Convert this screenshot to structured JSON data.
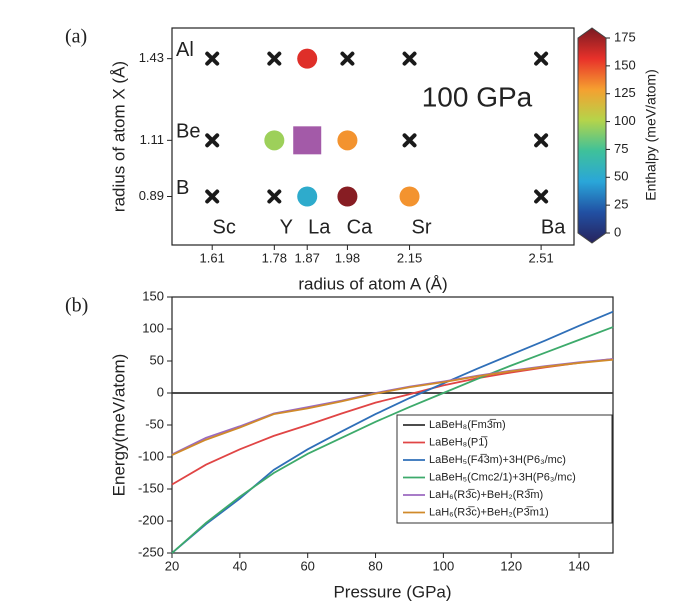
{
  "chart_data": [
    {
      "type": "scatter",
      "panel_label": "(a)",
      "annotation": "100 GPa",
      "xlabel": "radius of atom A (Å)",
      "ylabel": "radius of atom X (Å)",
      "xlim": [
        1.5,
        2.6
      ],
      "ylim": [
        0.7,
        1.55
      ],
      "xticks": [
        1.61,
        1.78,
        1.87,
        1.98,
        2.15,
        2.51
      ],
      "yticks": [
        0.89,
        1.11,
        1.43
      ],
      "x_names": [
        "Sc",
        "Y",
        "La",
        "Ca",
        "Sr",
        "Ba"
      ],
      "y_names": [
        "B",
        "Be",
        "Al"
      ],
      "series": [
        {
          "marker": "cross",
          "color": "#1a1a1a",
          "x": [
            1.61,
            1.78,
            1.98,
            2.15,
            2.51,
            1.61,
            2.15,
            2.51,
            1.61,
            1.78,
            2.51
          ],
          "y": [
            1.43,
            1.43,
            1.43,
            1.43,
            1.43,
            1.11,
            1.11,
            1.11,
            0.89,
            0.89,
            0.89
          ]
        },
        {
          "marker": "circle",
          "x": [
            1.87,
            1.78,
            1.98,
            1.87,
            1.98,
            2.15
          ],
          "y": [
            1.43,
            1.11,
            1.11,
            0.89,
            0.89,
            0.89
          ],
          "values": [
            152,
            95,
            128,
            55,
            172,
            128
          ]
        },
        {
          "marker": "square",
          "color": "#a35aa8",
          "x": [
            1.87
          ],
          "y": [
            1.11
          ]
        }
      ],
      "colorbar": {
        "label": "Enthalpy (meV/atom)",
        "lim": [
          0,
          175
        ],
        "ticks": [
          0,
          25,
          50,
          75,
          100,
          125,
          150,
          175
        ],
        "colors": [
          "#27235c",
          "#2150a3",
          "#2aa6d9",
          "#3fc19a",
          "#b5d44a",
          "#f5a030",
          "#e8312a",
          "#7a1a22"
        ]
      }
    },
    {
      "type": "line",
      "panel_label": "(b)",
      "xlabel": "Pressure (GPa)",
      "ylabel": "Energy(meV/atom)",
      "xlim": [
        20,
        150
      ],
      "ylim": [
        -250,
        150
      ],
      "xticks": [
        20,
        40,
        60,
        80,
        100,
        120,
        140
      ],
      "yticks": [
        -250,
        -200,
        -150,
        -100,
        -50,
        0,
        50,
        100,
        150
      ],
      "legend_loc": "lower right",
      "x": [
        20,
        30,
        40,
        50,
        60,
        70,
        80,
        90,
        100,
        110,
        120,
        130,
        140,
        150
      ],
      "series": [
        {
          "name": "LaBeH₈(Fm3̅m)",
          "color": "#333333",
          "values": [
            0,
            0,
            0,
            0,
            0,
            0,
            0,
            0,
            0,
            0,
            0,
            0,
            0,
            0
          ]
        },
        {
          "name": "LaBeH₈(P1̅)",
          "color": "#e04545",
          "values": [
            -143,
            -112,
            -88,
            -67,
            -50,
            -32,
            -15,
            -2,
            12,
            23,
            32,
            40,
            47,
            53
          ]
        },
        {
          "name": "LaBeH₅(F4̅3m)+3H(P6₃/mc)",
          "color": "#2f6fb8",
          "values": [
            -250,
            -205,
            -165,
            -120,
            -88,
            -60,
            -33,
            -8,
            15,
            38,
            60,
            82,
            105,
            127
          ]
        },
        {
          "name": "LaBeH₅(Cmc2/1)+3H(P6₃/mc)",
          "color": "#3daa6b",
          "values": [
            -250,
            -203,
            -162,
            -125,
            -95,
            -70,
            -45,
            -22,
            0,
            22,
            43,
            63,
            83,
            103
          ]
        },
        {
          "name": "LaH₆(R3̅c)+BeH₂(R3̅m)",
          "color": "#9b6ac0",
          "values": [
            -96,
            -70,
            -52,
            -32,
            -22,
            -12,
            0,
            10,
            18,
            27,
            35,
            42,
            48,
            53
          ]
        },
        {
          "name": "LaH₆(R3̅c)+BeH₂(P3̅m1)",
          "color": "#d08a2a",
          "values": [
            -97,
            -73,
            -54,
            -33,
            -24,
            -13,
            -1,
            9,
            17,
            26,
            34,
            41,
            47,
            52
          ]
        }
      ]
    }
  ]
}
